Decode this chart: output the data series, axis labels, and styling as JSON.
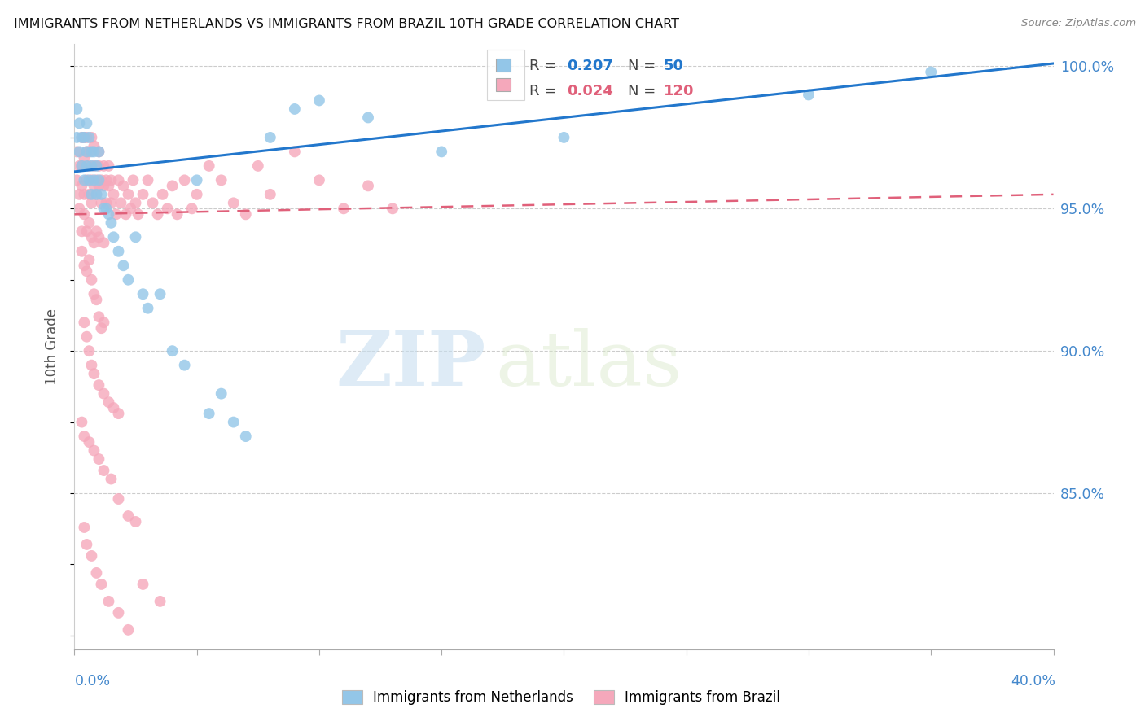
{
  "title": "IMMIGRANTS FROM NETHERLANDS VS IMMIGRANTS FROM BRAZIL 10TH GRADE CORRELATION CHART",
  "source": "Source: ZipAtlas.com",
  "ylabel": "10th Grade",
  "x_min": 0.0,
  "x_max": 0.4,
  "y_min": 0.795,
  "y_max": 1.008,
  "r_netherlands": 0.207,
  "n_netherlands": 50,
  "r_brazil": 0.024,
  "n_brazil": 120,
  "color_netherlands": "#93C6E8",
  "color_brazil": "#F5A8BB",
  "trend_netherlands_color": "#2277CC",
  "trend_brazil_color": "#E0607A",
  "watermark_zip": "ZIP",
  "watermark_atlas": "atlas",
  "netherlands_x": [
    0.001,
    0.001,
    0.002,
    0.002,
    0.003,
    0.003,
    0.004,
    0.004,
    0.005,
    0.005,
    0.005,
    0.006,
    0.006,
    0.007,
    0.007,
    0.007,
    0.008,
    0.008,
    0.009,
    0.009,
    0.01,
    0.01,
    0.011,
    0.012,
    0.013,
    0.014,
    0.015,
    0.016,
    0.018,
    0.02,
    0.022,
    0.025,
    0.028,
    0.03,
    0.035,
    0.04,
    0.045,
    0.05,
    0.055,
    0.06,
    0.065,
    0.07,
    0.08,
    0.09,
    0.1,
    0.12,
    0.15,
    0.2,
    0.3,
    0.35
  ],
  "netherlands_y": [
    0.975,
    0.985,
    0.97,
    0.98,
    0.975,
    0.965,
    0.975,
    0.96,
    0.97,
    0.98,
    0.965,
    0.975,
    0.96,
    0.97,
    0.955,
    0.965,
    0.96,
    0.97,
    0.965,
    0.955,
    0.96,
    0.97,
    0.955,
    0.95,
    0.95,
    0.948,
    0.945,
    0.94,
    0.935,
    0.93,
    0.925,
    0.94,
    0.92,
    0.915,
    0.92,
    0.9,
    0.895,
    0.96,
    0.878,
    0.885,
    0.875,
    0.87,
    0.975,
    0.985,
    0.988,
    0.982,
    0.97,
    0.975,
    0.99,
    0.998
  ],
  "brazil_x": [
    0.001,
    0.001,
    0.002,
    0.002,
    0.003,
    0.003,
    0.003,
    0.004,
    0.004,
    0.004,
    0.005,
    0.005,
    0.005,
    0.006,
    0.006,
    0.006,
    0.007,
    0.007,
    0.007,
    0.008,
    0.008,
    0.008,
    0.009,
    0.009,
    0.01,
    0.01,
    0.01,
    0.011,
    0.011,
    0.012,
    0.012,
    0.013,
    0.013,
    0.014,
    0.014,
    0.015,
    0.015,
    0.016,
    0.017,
    0.018,
    0.019,
    0.02,
    0.021,
    0.022,
    0.023,
    0.024,
    0.025,
    0.026,
    0.028,
    0.03,
    0.032,
    0.034,
    0.036,
    0.038,
    0.04,
    0.042,
    0.045,
    0.048,
    0.05,
    0.055,
    0.06,
    0.065,
    0.07,
    0.075,
    0.08,
    0.09,
    0.1,
    0.11,
    0.12,
    0.13,
    0.002,
    0.003,
    0.004,
    0.005,
    0.006,
    0.007,
    0.008,
    0.009,
    0.01,
    0.012,
    0.003,
    0.004,
    0.005,
    0.006,
    0.007,
    0.008,
    0.009,
    0.01,
    0.011,
    0.012,
    0.004,
    0.005,
    0.006,
    0.007,
    0.008,
    0.01,
    0.012,
    0.014,
    0.016,
    0.018,
    0.003,
    0.004,
    0.006,
    0.008,
    0.01,
    0.012,
    0.015,
    0.018,
    0.022,
    0.025,
    0.004,
    0.005,
    0.007,
    0.009,
    0.011,
    0.014,
    0.018,
    0.022,
    0.028,
    0.035
  ],
  "brazil_y": [
    0.96,
    0.97,
    0.965,
    0.955,
    0.965,
    0.975,
    0.958,
    0.968,
    0.975,
    0.955,
    0.97,
    0.96,
    0.975,
    0.965,
    0.955,
    0.97,
    0.96,
    0.975,
    0.952,
    0.965,
    0.958,
    0.972,
    0.96,
    0.955,
    0.965,
    0.958,
    0.97,
    0.96,
    0.952,
    0.965,
    0.958,
    0.96,
    0.952,
    0.965,
    0.958,
    0.96,
    0.952,
    0.955,
    0.948,
    0.96,
    0.952,
    0.958,
    0.948,
    0.955,
    0.95,
    0.96,
    0.952,
    0.948,
    0.955,
    0.96,
    0.952,
    0.948,
    0.955,
    0.95,
    0.958,
    0.948,
    0.96,
    0.95,
    0.955,
    0.965,
    0.96,
    0.952,
    0.948,
    0.965,
    0.955,
    0.97,
    0.96,
    0.95,
    0.958,
    0.95,
    0.95,
    0.942,
    0.948,
    0.942,
    0.945,
    0.94,
    0.938,
    0.942,
    0.94,
    0.938,
    0.935,
    0.93,
    0.928,
    0.932,
    0.925,
    0.92,
    0.918,
    0.912,
    0.908,
    0.91,
    0.91,
    0.905,
    0.9,
    0.895,
    0.892,
    0.888,
    0.885,
    0.882,
    0.88,
    0.878,
    0.875,
    0.87,
    0.868,
    0.865,
    0.862,
    0.858,
    0.855,
    0.848,
    0.842,
    0.84,
    0.838,
    0.832,
    0.828,
    0.822,
    0.818,
    0.812,
    0.808,
    0.802,
    0.818,
    0.812
  ]
}
